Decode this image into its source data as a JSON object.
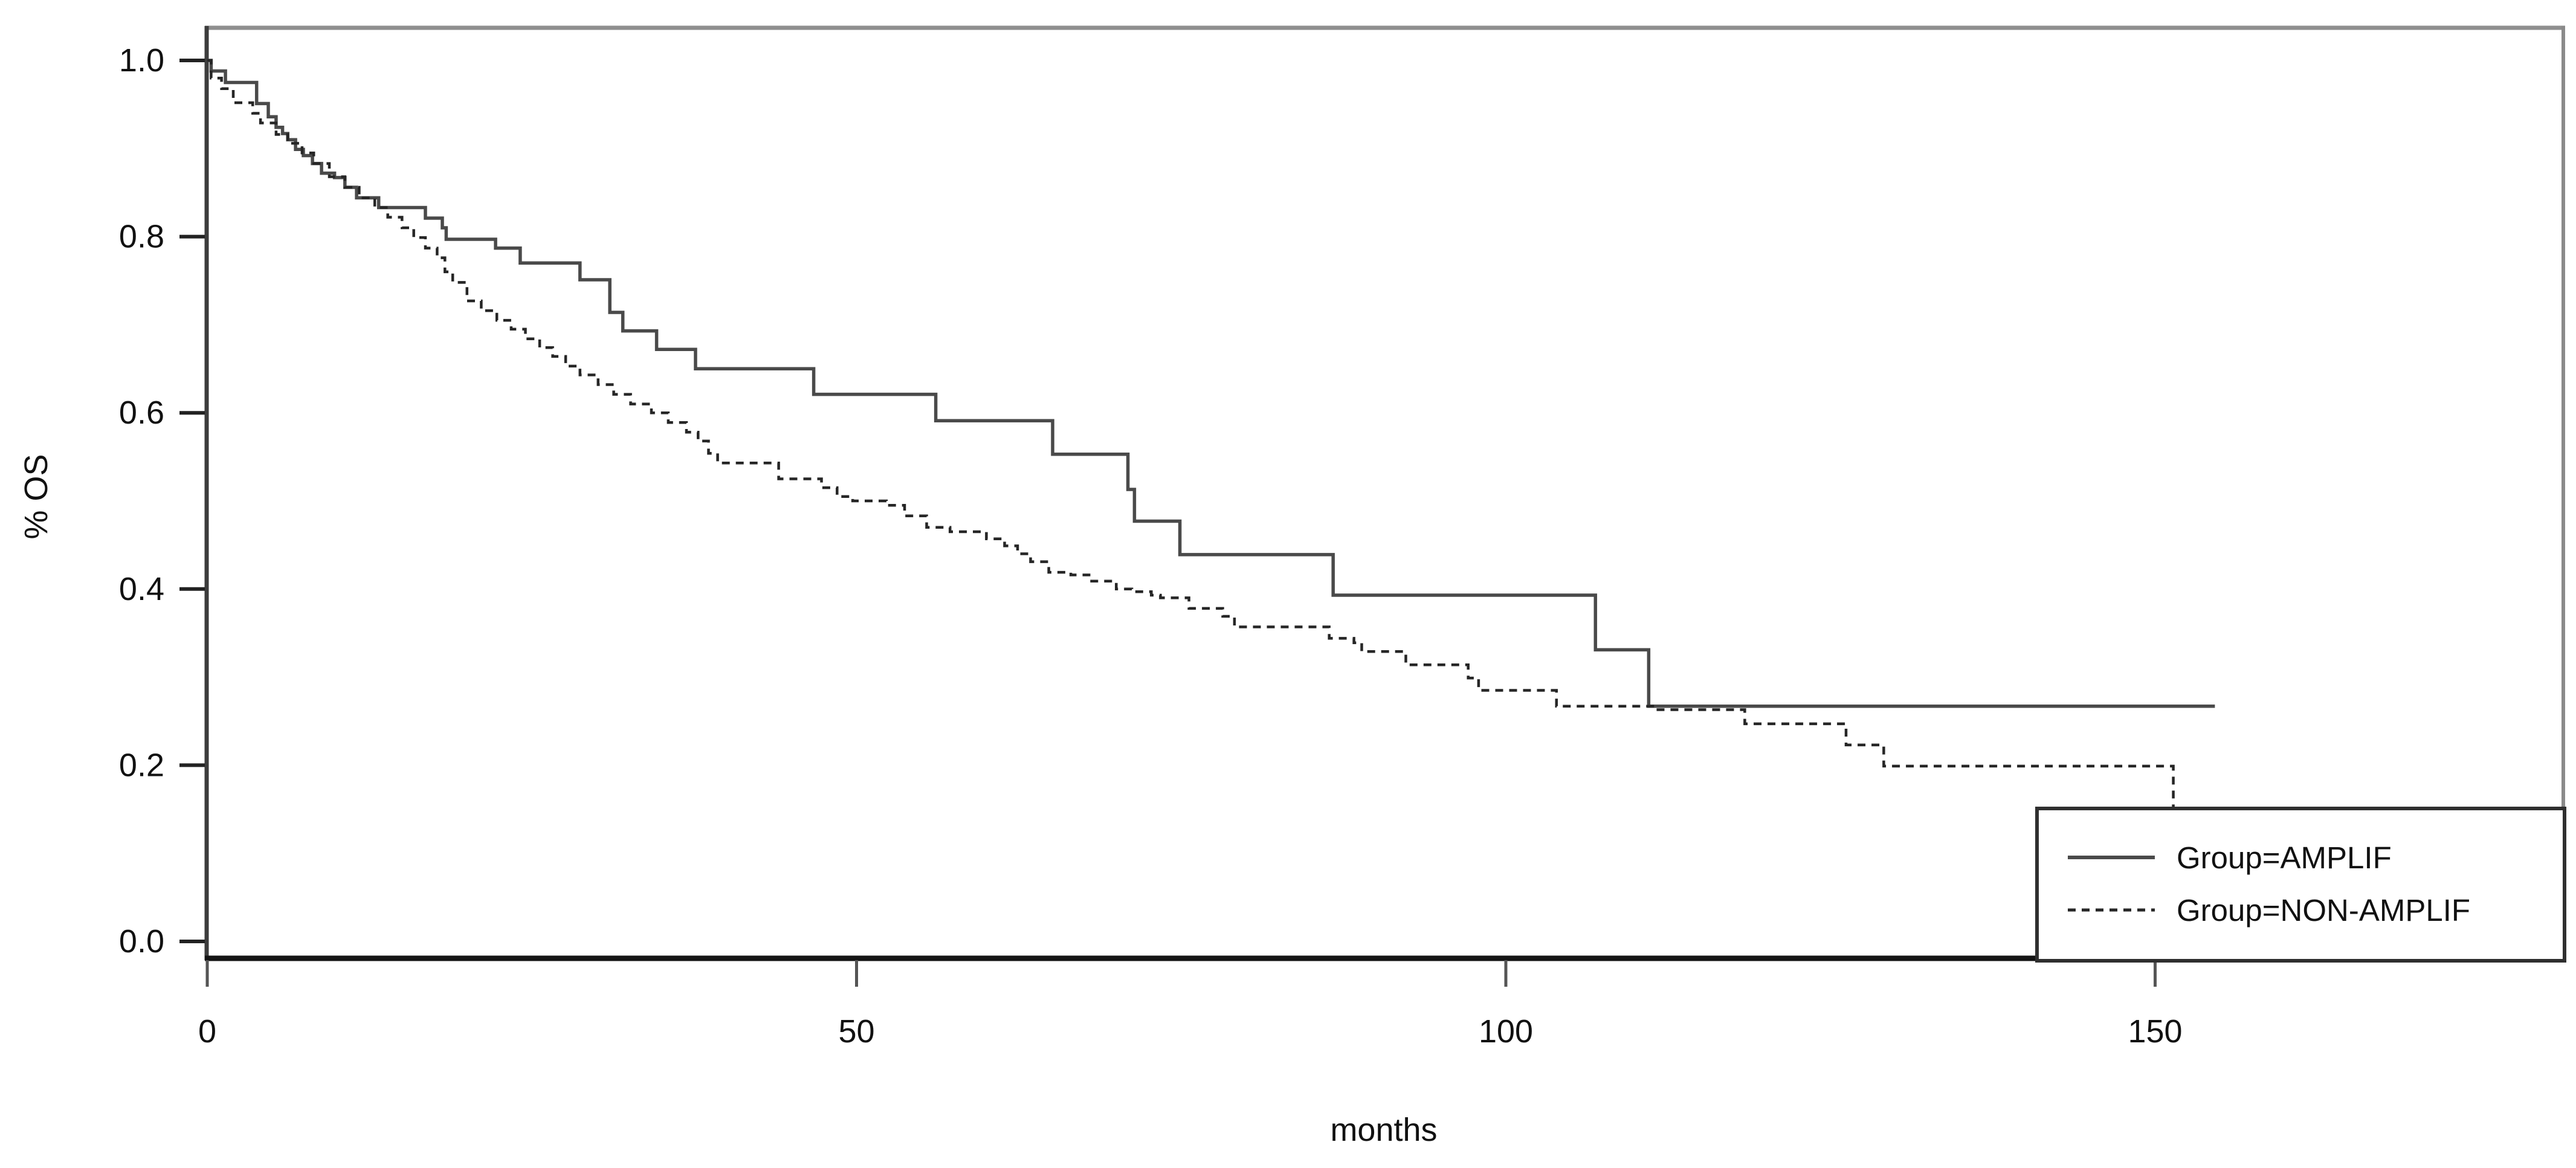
{
  "chart_data": {
    "type": "line",
    "subtype": "kaplan_meier_step",
    "title": "",
    "xlabel": "months",
    "ylabel": "% OS",
    "x_ticks": [
      0,
      50,
      100,
      150
    ],
    "y_ticks": [
      "1.0",
      "0.8",
      "0.6",
      "0.4",
      "0.2",
      "0.0"
    ],
    "y_tick_values": [
      1.0,
      0.8,
      0.6,
      0.4,
      0.2,
      0.0
    ],
    "xlim": [
      0,
      181
    ],
    "ylim": [
      0.0,
      1.0
    ],
    "grid": false,
    "legend_position": "bottom-right",
    "series": [
      {
        "name": "Group=AMPLIF",
        "style": "solid",
        "color": "#4a4a4a",
        "end_t": 154.6,
        "points": [
          [
            0,
            1.0
          ],
          [
            0.3,
            0.988
          ],
          [
            1.4,
            0.975
          ],
          [
            3.8,
            0.951
          ],
          [
            4.7,
            0.936
          ],
          [
            5.3,
            0.924
          ],
          [
            5.8,
            0.917
          ],
          [
            6.2,
            0.91
          ],
          [
            6.8,
            0.899
          ],
          [
            7.4,
            0.892
          ],
          [
            8.1,
            0.883
          ],
          [
            8.8,
            0.872
          ],
          [
            9.8,
            0.867
          ],
          [
            10.6,
            0.856
          ],
          [
            11.5,
            0.844
          ],
          [
            13.2,
            0.833
          ],
          [
            16.8,
            0.821
          ],
          [
            18.1,
            0.81
          ],
          [
            18.4,
            0.797
          ],
          [
            22.2,
            0.787
          ],
          [
            24.1,
            0.77
          ],
          [
            28.7,
            0.751
          ],
          [
            31.0,
            0.714
          ],
          [
            32.0,
            0.693
          ],
          [
            34.6,
            0.672
          ],
          [
            37.6,
            0.65
          ],
          [
            46.7,
            0.621
          ],
          [
            56.1,
            0.591
          ],
          [
            65.1,
            0.553
          ],
          [
            70.9,
            0.513
          ],
          [
            71.4,
            0.477
          ],
          [
            74.9,
            0.439
          ],
          [
            86.7,
            0.393
          ],
          [
            106.9,
            0.331
          ],
          [
            111.0,
            0.267
          ]
        ]
      },
      {
        "name": "Group=NON-AMPLIF",
        "style": "dashed",
        "color": "#262626",
        "end_t": 151.4,
        "points": [
          [
            0,
            1.0
          ],
          [
            0.3,
            0.98
          ],
          [
            1.1,
            0.968
          ],
          [
            2.0,
            0.952
          ],
          [
            3.5,
            0.94
          ],
          [
            4.1,
            0.929
          ],
          [
            5.3,
            0.916
          ],
          [
            6.2,
            0.906
          ],
          [
            7.3,
            0.895
          ],
          [
            8.2,
            0.883
          ],
          [
            9.4,
            0.868
          ],
          [
            10.6,
            0.856
          ],
          [
            11.7,
            0.844
          ],
          [
            12.9,
            0.833
          ],
          [
            13.9,
            0.822
          ],
          [
            15.0,
            0.81
          ],
          [
            15.9,
            0.799
          ],
          [
            16.8,
            0.787
          ],
          [
            17.7,
            0.776
          ],
          [
            18.3,
            0.76
          ],
          [
            18.9,
            0.748
          ],
          [
            20.0,
            0.727
          ],
          [
            21.1,
            0.716
          ],
          [
            22.3,
            0.705
          ],
          [
            23.4,
            0.695
          ],
          [
            24.5,
            0.684
          ],
          [
            25.6,
            0.674
          ],
          [
            26.6,
            0.664
          ],
          [
            27.6,
            0.653
          ],
          [
            28.7,
            0.643
          ],
          [
            30.1,
            0.632
          ],
          [
            31.3,
            0.621
          ],
          [
            32.6,
            0.61
          ],
          [
            34.2,
            0.6
          ],
          [
            35.5,
            0.589
          ],
          [
            36.9,
            0.578
          ],
          [
            37.8,
            0.568
          ],
          [
            38.6,
            0.554
          ],
          [
            39.3,
            0.543
          ],
          [
            44.0,
            0.525
          ],
          [
            47.3,
            0.515
          ],
          [
            48.5,
            0.505
          ],
          [
            49.7,
            0.5
          ],
          [
            52.3,
            0.495
          ],
          [
            53.7,
            0.483
          ],
          [
            55.4,
            0.47
          ],
          [
            57.2,
            0.465
          ],
          [
            60.0,
            0.457
          ],
          [
            61.4,
            0.449
          ],
          [
            62.4,
            0.44
          ],
          [
            63.4,
            0.431
          ],
          [
            64.8,
            0.419
          ],
          [
            66.5,
            0.416
          ],
          [
            67.9,
            0.409
          ],
          [
            70.0,
            0.4
          ],
          [
            71.2,
            0.397
          ],
          [
            72.7,
            0.393
          ],
          [
            73.4,
            0.39
          ],
          [
            75.6,
            0.378
          ],
          [
            78.2,
            0.369
          ],
          [
            79.1,
            0.357
          ],
          [
            86.4,
            0.344
          ],
          [
            88.3,
            0.339
          ],
          [
            88.9,
            0.329
          ],
          [
            92.3,
            0.314
          ],
          [
            97.1,
            0.299
          ],
          [
            97.9,
            0.285
          ],
          [
            103.9,
            0.267
          ],
          [
            111.5,
            0.263
          ],
          [
            118.4,
            0.247
          ],
          [
            126.2,
            0.223
          ],
          [
            129.1,
            0.199
          ],
          [
            151.4,
            0.15
          ]
        ]
      }
    ],
    "legend": {
      "entries": [
        {
          "label": "Group=AMPLIF",
          "style": "solid"
        },
        {
          "label": "Group=NON-AMPLIF",
          "style": "dashed"
        }
      ]
    },
    "colors": {
      "background": "#ffffff",
      "axis_dark": "#222222",
      "box_gray": "#8f8f8f",
      "text": "#111111",
      "solid_curve": "#4a4a4a",
      "dashed_curve": "#262626"
    }
  }
}
